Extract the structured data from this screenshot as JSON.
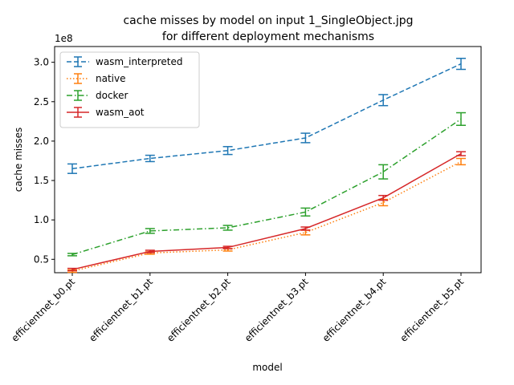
{
  "chart_data": {
    "type": "line",
    "title": "cache misses by model on input 1_SingleObject.jpg",
    "subtitle": "for different deployment mechanisms",
    "xlabel": "model",
    "ylabel": "cache misses",
    "y_multiplier_label": "1e8",
    "categories": [
      "efficientnet_b0.pt",
      "efficientnet_b1.pt",
      "efficientnet_b2.pt",
      "efficientnet_b3.pt",
      "efficientnet_b4.pt",
      "efficientnet_b5.pt"
    ],
    "ylim": [
      0.33,
      3.2
    ],
    "yticks": [
      0.5,
      1.0,
      1.5,
      2.0,
      2.5,
      3.0
    ],
    "ytick_labels": [
      "0.5",
      "1.0",
      "1.5",
      "2.0",
      "2.5",
      "3.0"
    ],
    "grid": false,
    "legend_position": "top-left",
    "series": [
      {
        "name": "wasm_interpreted",
        "color": "#1f77b4",
        "dash": "dashed",
        "values": [
          1.65,
          1.78,
          1.88,
          2.04,
          2.52,
          2.98
        ],
        "errors": [
          0.06,
          0.04,
          0.05,
          0.06,
          0.07,
          0.07
        ]
      },
      {
        "name": "native",
        "color": "#ff7f0e",
        "dash": "dotted",
        "values": [
          0.35,
          0.58,
          0.62,
          0.84,
          1.22,
          1.74
        ],
        "errors": [
          0.015,
          0.015,
          0.015,
          0.03,
          0.04,
          0.04
        ]
      },
      {
        "name": "docker",
        "color": "#2ca02c",
        "dash": "dashdot",
        "values": [
          0.56,
          0.86,
          0.9,
          1.1,
          1.61,
          2.28
        ],
        "errors": [
          0.015,
          0.03,
          0.03,
          0.05,
          0.09,
          0.08
        ]
      },
      {
        "name": "wasm_aot",
        "color": "#d62728",
        "dash": "solid",
        "values": [
          0.37,
          0.6,
          0.65,
          0.89,
          1.28,
          1.84
        ],
        "errors": [
          0.015,
          0.015,
          0.015,
          0.02,
          0.03,
          0.025
        ]
      }
    ]
  }
}
